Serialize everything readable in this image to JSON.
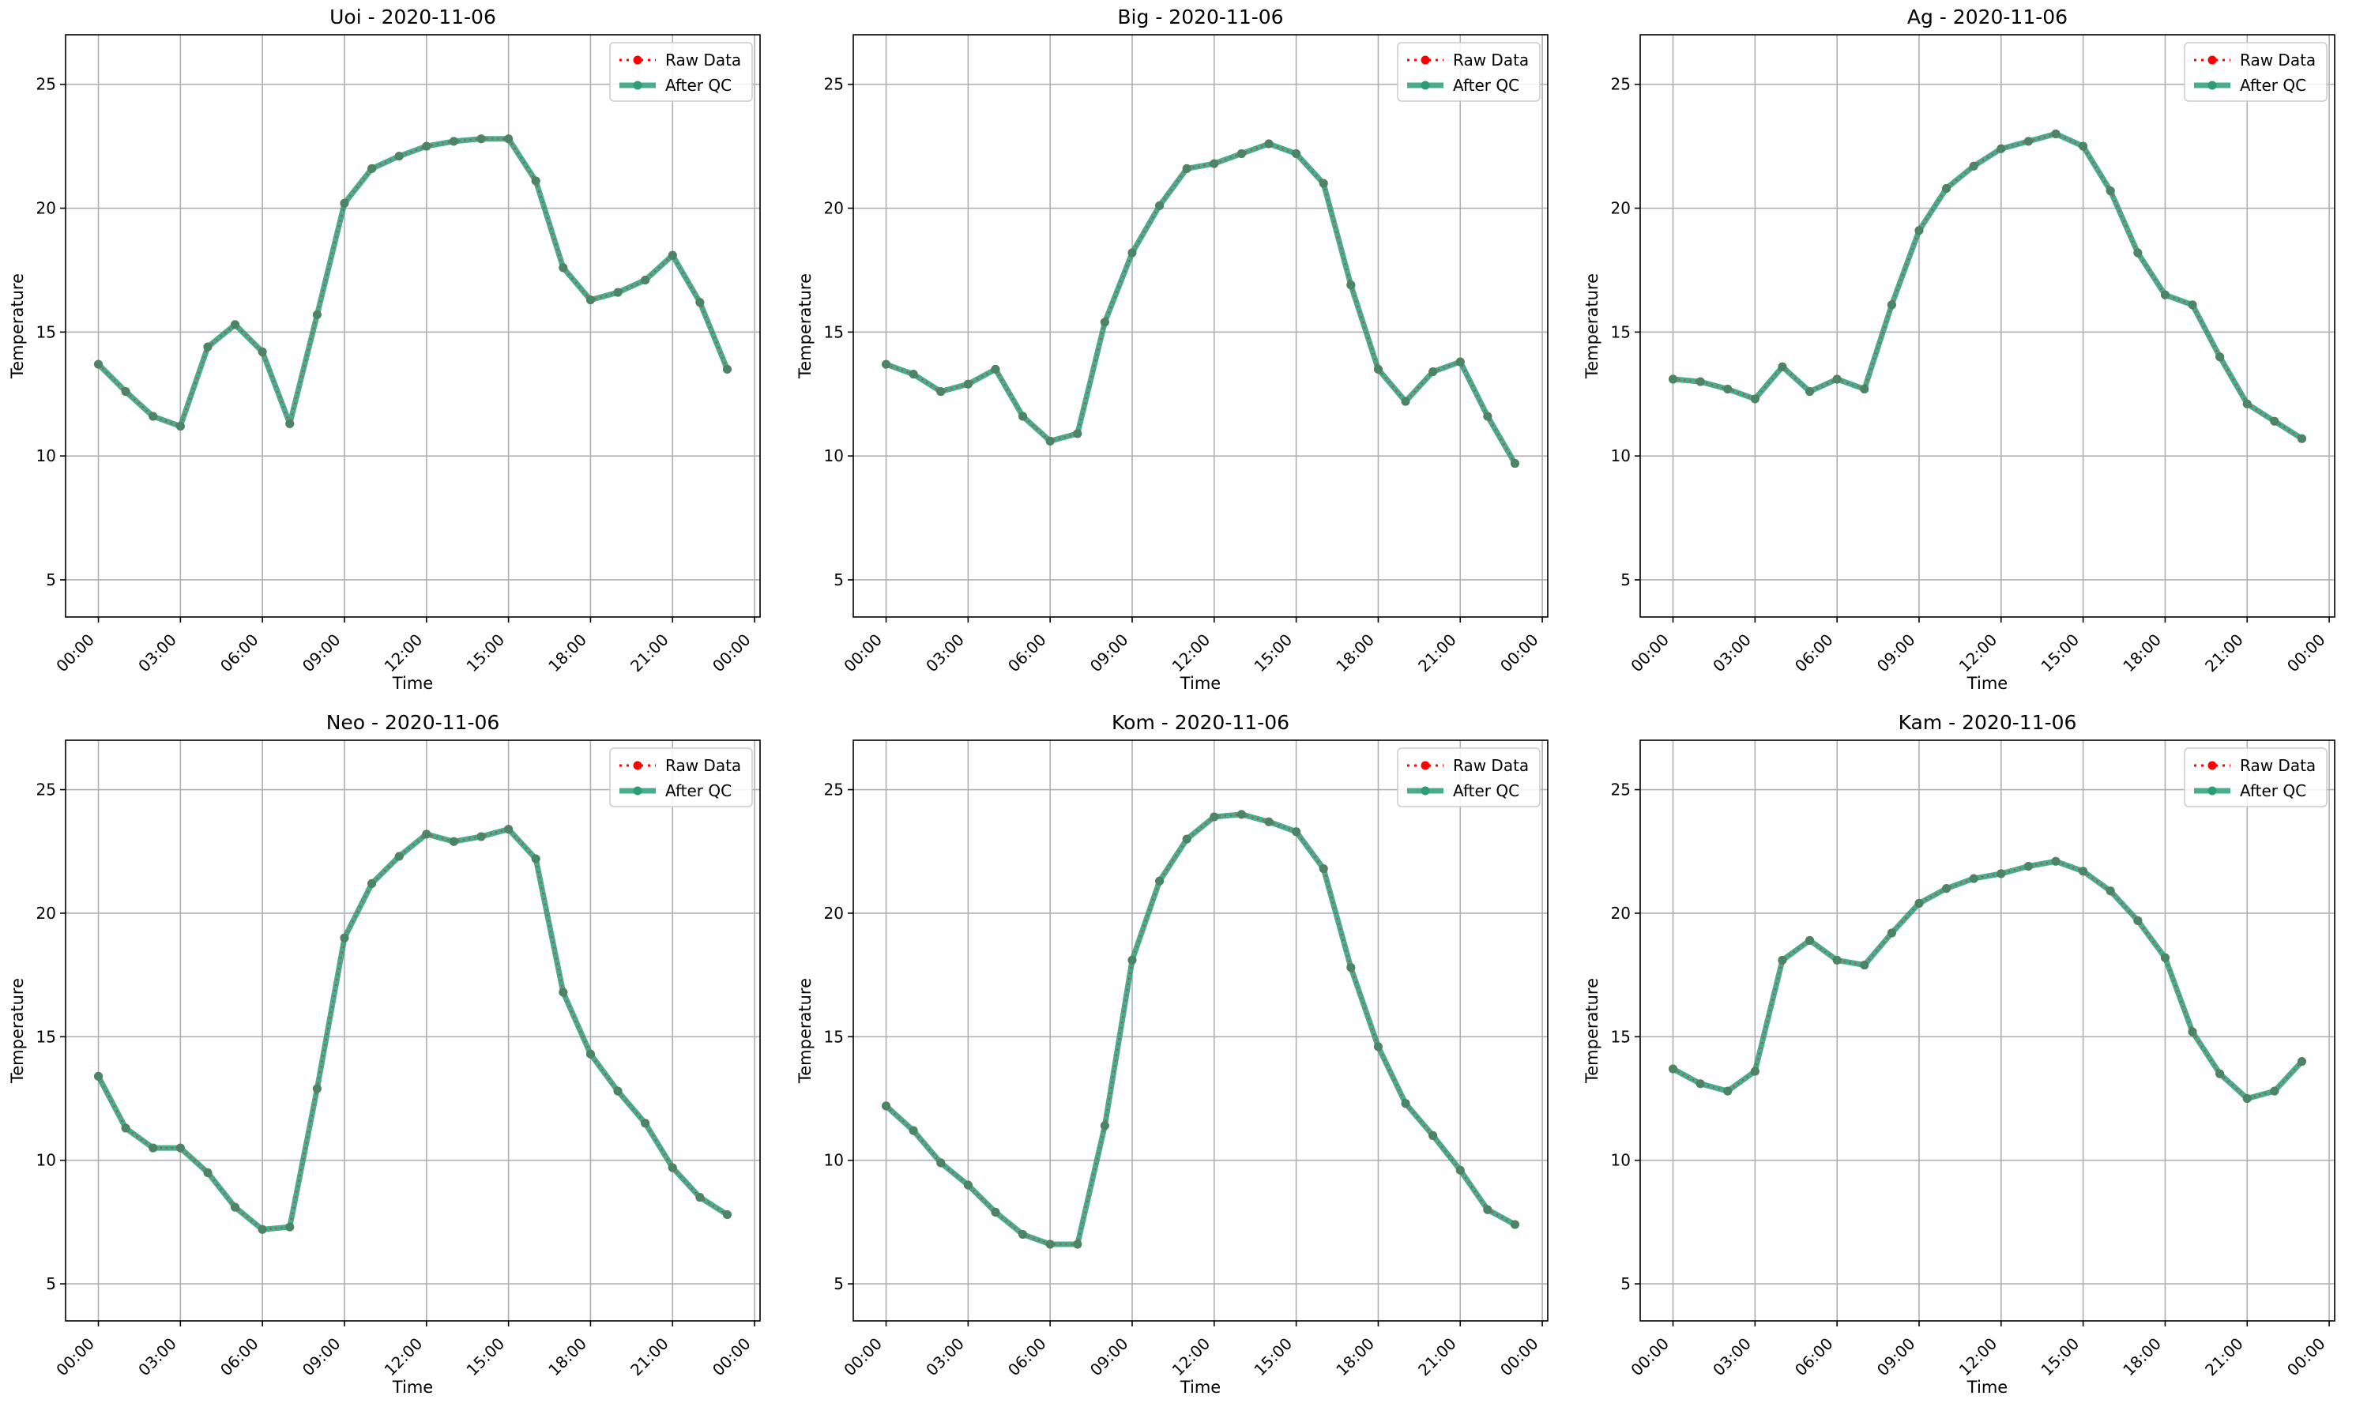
{
  "chart_data": [
    {
      "type": "line",
      "title": "Uoi - 2020-11-06",
      "xlabel": "Time",
      "ylabel": "Temperature",
      "x_ticks": [
        "00:00",
        "03:00",
        "06:00",
        "09:00",
        "12:00",
        "15:00",
        "18:00",
        "21:00",
        "00:00"
      ],
      "y_ticks": [
        5,
        10,
        15,
        20,
        25
      ],
      "ylim": [
        3.5,
        27
      ],
      "xlim_hours": [
        -1.2,
        24.2
      ],
      "grid": true,
      "legend_position": "top-right",
      "legend": [
        "Raw Data",
        "After QC"
      ],
      "x_hours": [
        0,
        1,
        2,
        3,
        4,
        5,
        6,
        7,
        8,
        9,
        10,
        11,
        12,
        13,
        14,
        15,
        16,
        17,
        18,
        19,
        20,
        21,
        22,
        23
      ],
      "series": [
        {
          "name": "Raw Data",
          "values": [
            13.7,
            12.6,
            11.6,
            11.2,
            14.4,
            15.3,
            14.2,
            11.3,
            15.7,
            20.2,
            21.6,
            22.1,
            22.5,
            22.7,
            22.8,
            22.8,
            21.1,
            17.6,
            16.3,
            16.6,
            17.1,
            18.1,
            16.2,
            13.5
          ]
        },
        {
          "name": "After QC",
          "values": [
            13.7,
            12.6,
            11.6,
            11.2,
            14.4,
            15.3,
            14.2,
            11.3,
            15.7,
            20.2,
            21.6,
            22.1,
            22.5,
            22.7,
            22.8,
            22.8,
            21.1,
            17.6,
            16.3,
            16.6,
            17.1,
            18.1,
            16.2,
            13.5
          ]
        }
      ]
    },
    {
      "type": "line",
      "title": "Big - 2020-11-06",
      "xlabel": "Time",
      "ylabel": "Temperature",
      "x_ticks": [
        "00:00",
        "03:00",
        "06:00",
        "09:00",
        "12:00",
        "15:00",
        "18:00",
        "21:00",
        "00:00"
      ],
      "y_ticks": [
        5,
        10,
        15,
        20,
        25
      ],
      "ylim": [
        3.5,
        27
      ],
      "xlim_hours": [
        -1.2,
        24.2
      ],
      "grid": true,
      "legend_position": "top-right",
      "legend": [
        "Raw Data",
        "After QC"
      ],
      "x_hours": [
        0,
        1,
        2,
        3,
        4,
        5,
        6,
        7,
        8,
        9,
        10,
        11,
        12,
        13,
        14,
        15,
        16,
        17,
        18,
        19,
        20,
        21,
        22,
        23
      ],
      "series": [
        {
          "name": "Raw Data",
          "values": [
            13.7,
            13.3,
            12.6,
            12.9,
            13.5,
            11.6,
            10.6,
            10.9,
            15.4,
            18.2,
            20.1,
            21.6,
            21.8,
            22.2,
            22.6,
            22.2,
            21.0,
            16.9,
            13.5,
            12.2,
            13.4,
            13.8,
            11.6,
            9.7
          ]
        },
        {
          "name": "After QC",
          "values": [
            13.7,
            13.3,
            12.6,
            12.9,
            13.5,
            11.6,
            10.6,
            10.9,
            15.4,
            18.2,
            20.1,
            21.6,
            21.8,
            22.2,
            22.6,
            22.2,
            21.0,
            16.9,
            13.5,
            12.2,
            13.4,
            13.8,
            11.6,
            9.7
          ]
        }
      ]
    },
    {
      "type": "line",
      "title": "Ag - 2020-11-06",
      "xlabel": "Time",
      "ylabel": "Temperature",
      "x_ticks": [
        "00:00",
        "03:00",
        "06:00",
        "09:00",
        "12:00",
        "15:00",
        "18:00",
        "21:00",
        "00:00"
      ],
      "y_ticks": [
        5,
        10,
        15,
        20,
        25
      ],
      "ylim": [
        3.5,
        27
      ],
      "xlim_hours": [
        -1.2,
        24.2
      ],
      "grid": true,
      "legend_position": "top-right",
      "legend": [
        "Raw Data",
        "After QC"
      ],
      "x_hours": [
        0,
        1,
        2,
        3,
        4,
        5,
        6,
        7,
        8,
        9,
        10,
        11,
        12,
        13,
        14,
        15,
        16,
        17,
        18,
        19,
        20,
        21,
        22,
        23
      ],
      "series": [
        {
          "name": "Raw Data",
          "values": [
            13.1,
            13.0,
            12.7,
            12.3,
            13.6,
            12.6,
            13.1,
            12.7,
            16.1,
            19.1,
            20.8,
            21.7,
            22.4,
            22.7,
            23.0,
            22.5,
            20.7,
            18.2,
            16.5,
            16.1,
            14.0,
            12.1,
            11.4,
            10.7
          ]
        },
        {
          "name": "After QC",
          "values": [
            13.1,
            13.0,
            12.7,
            12.3,
            13.6,
            12.6,
            13.1,
            12.7,
            16.1,
            19.1,
            20.8,
            21.7,
            22.4,
            22.7,
            23.0,
            22.5,
            20.7,
            18.2,
            16.5,
            16.1,
            14.0,
            12.1,
            11.4,
            10.7
          ]
        }
      ]
    },
    {
      "type": "line",
      "title": "Neo - 2020-11-06",
      "xlabel": "Time",
      "ylabel": "Temperature",
      "x_ticks": [
        "00:00",
        "03:00",
        "06:00",
        "09:00",
        "12:00",
        "15:00",
        "18:00",
        "21:00",
        "00:00"
      ],
      "y_ticks": [
        5,
        10,
        15,
        20,
        25
      ],
      "ylim": [
        3.5,
        27
      ],
      "xlim_hours": [
        -1.2,
        24.2
      ],
      "grid": true,
      "legend_position": "top-right",
      "legend": [
        "Raw Data",
        "After QC"
      ],
      "x_hours": [
        0,
        1,
        2,
        3,
        4,
        5,
        6,
        7,
        8,
        9,
        10,
        11,
        12,
        13,
        14,
        15,
        16,
        17,
        18,
        19,
        20,
        21,
        22,
        23
      ],
      "series": [
        {
          "name": "Raw Data",
          "values": [
            13.4,
            11.3,
            10.5,
            10.5,
            9.5,
            8.1,
            7.2,
            7.3,
            12.9,
            19.0,
            21.2,
            22.3,
            23.2,
            22.9,
            23.1,
            23.4,
            22.2,
            16.8,
            14.3,
            12.8,
            11.5,
            9.7,
            8.5,
            7.8
          ]
        },
        {
          "name": "After QC",
          "values": [
            13.4,
            11.3,
            10.5,
            10.5,
            9.5,
            8.1,
            7.2,
            7.3,
            12.9,
            19.0,
            21.2,
            22.3,
            23.2,
            22.9,
            23.1,
            23.4,
            22.2,
            16.8,
            14.3,
            12.8,
            11.5,
            9.7,
            8.5,
            7.8
          ]
        }
      ]
    },
    {
      "type": "line",
      "title": "Kom - 2020-11-06",
      "xlabel": "Time",
      "ylabel": "Temperature",
      "x_ticks": [
        "00:00",
        "03:00",
        "06:00",
        "09:00",
        "12:00",
        "15:00",
        "18:00",
        "21:00",
        "00:00"
      ],
      "y_ticks": [
        5,
        10,
        15,
        20,
        25
      ],
      "ylim": [
        3.5,
        27
      ],
      "xlim_hours": [
        -1.2,
        24.2
      ],
      "grid": true,
      "legend_position": "top-right",
      "legend": [
        "Raw Data",
        "After QC"
      ],
      "x_hours": [
        0,
        1,
        2,
        3,
        4,
        5,
        6,
        7,
        8,
        9,
        10,
        11,
        12,
        13,
        14,
        15,
        16,
        17,
        18,
        19,
        20,
        21,
        22,
        23
      ],
      "series": [
        {
          "name": "Raw Data",
          "values": [
            12.2,
            11.2,
            9.9,
            9.0,
            7.9,
            7.0,
            6.6,
            6.6,
            11.4,
            18.1,
            21.3,
            23.0,
            23.9,
            24.0,
            23.7,
            23.3,
            21.8,
            17.8,
            14.6,
            12.3,
            11.0,
            9.6,
            8.0,
            7.4
          ]
        },
        {
          "name": "After QC",
          "values": [
            12.2,
            11.2,
            9.9,
            9.0,
            7.9,
            7.0,
            6.6,
            6.6,
            11.4,
            18.1,
            21.3,
            23.0,
            23.9,
            24.0,
            23.7,
            23.3,
            21.8,
            17.8,
            14.6,
            12.3,
            11.0,
            9.6,
            8.0,
            7.4
          ]
        }
      ]
    },
    {
      "type": "line",
      "title": "Kam - 2020-11-06",
      "xlabel": "Time",
      "ylabel": "Temperature",
      "x_ticks": [
        "00:00",
        "03:00",
        "06:00",
        "09:00",
        "12:00",
        "15:00",
        "18:00",
        "21:00",
        "00:00"
      ],
      "y_ticks": [
        5,
        10,
        15,
        20,
        25
      ],
      "ylim": [
        3.5,
        27
      ],
      "xlim_hours": [
        -1.2,
        24.2
      ],
      "grid": true,
      "legend_position": "top-right",
      "legend": [
        "Raw Data",
        "After QC"
      ],
      "x_hours": [
        0,
        1,
        2,
        3,
        4,
        5,
        6,
        7,
        8,
        9,
        10,
        11,
        12,
        13,
        14,
        15,
        16,
        17,
        18,
        19,
        20,
        21,
        22,
        23
      ],
      "series": [
        {
          "name": "Raw Data",
          "values": [
            13.7,
            13.1,
            12.8,
            13.6,
            18.1,
            18.9,
            18.1,
            17.9,
            19.2,
            20.4,
            21.0,
            21.4,
            21.6,
            21.9,
            22.1,
            21.7,
            20.9,
            19.7,
            18.2,
            15.2,
            13.5,
            12.5,
            12.8,
            14.0
          ]
        },
        {
          "name": "After QC",
          "values": [
            13.7,
            13.1,
            12.8,
            13.6,
            18.1,
            18.9,
            18.1,
            17.9,
            19.2,
            20.4,
            21.0,
            21.4,
            21.6,
            21.9,
            22.1,
            21.7,
            20.9,
            19.7,
            18.2,
            15.2,
            13.5,
            12.5,
            12.8,
            14.0
          ]
        }
      ]
    }
  ],
  "colors": {
    "raw_data": "#ff0000",
    "after_qc": "#2a9d78",
    "grid": "#b0b0b0"
  }
}
